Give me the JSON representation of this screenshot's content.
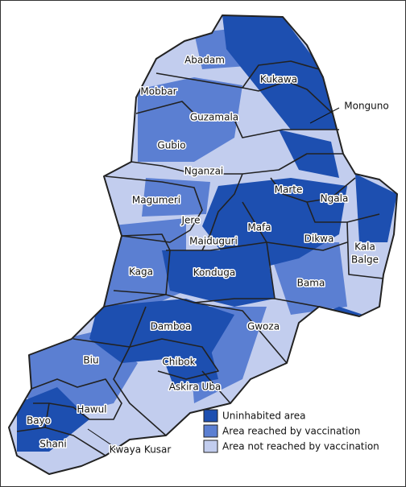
{
  "map": {
    "regions": [
      {
        "label": "Abadam"
      },
      {
        "label": "Kukawa"
      },
      {
        "label": "Mobbar"
      },
      {
        "label": "Guzamala"
      },
      {
        "label": "Monguno"
      },
      {
        "label": "Gubio"
      },
      {
        "label": "Nganzai"
      },
      {
        "label": "Magumeri"
      },
      {
        "label": "Marte"
      },
      {
        "label": "Ngala"
      },
      {
        "label": "Jere"
      },
      {
        "label": "Mafa"
      },
      {
        "label": "Maiduguri"
      },
      {
        "label": "Dikwa"
      },
      {
        "label_lines": [
          "Kala",
          "Balge"
        ]
      },
      {
        "label": "Kaga"
      },
      {
        "label": "Konduga"
      },
      {
        "label": "Bama"
      },
      {
        "label": "Damboa"
      },
      {
        "label": "Gwoza"
      },
      {
        "label": "Biu"
      },
      {
        "label": "Chibok"
      },
      {
        "label": "Askira Uba"
      },
      {
        "label": "Hawul"
      },
      {
        "label": "Bayo"
      },
      {
        "label": "Shani"
      },
      {
        "label": "Kwaya Kusar"
      }
    ],
    "legend": [
      {
        "label": "Uninhabited area",
        "color": "#1d4fb0"
      },
      {
        "label": "Area reached by vaccination",
        "color": "#5b7fd2"
      },
      {
        "label": "Area not reached by vaccination",
        "color": "#c2cdee"
      }
    ]
  }
}
